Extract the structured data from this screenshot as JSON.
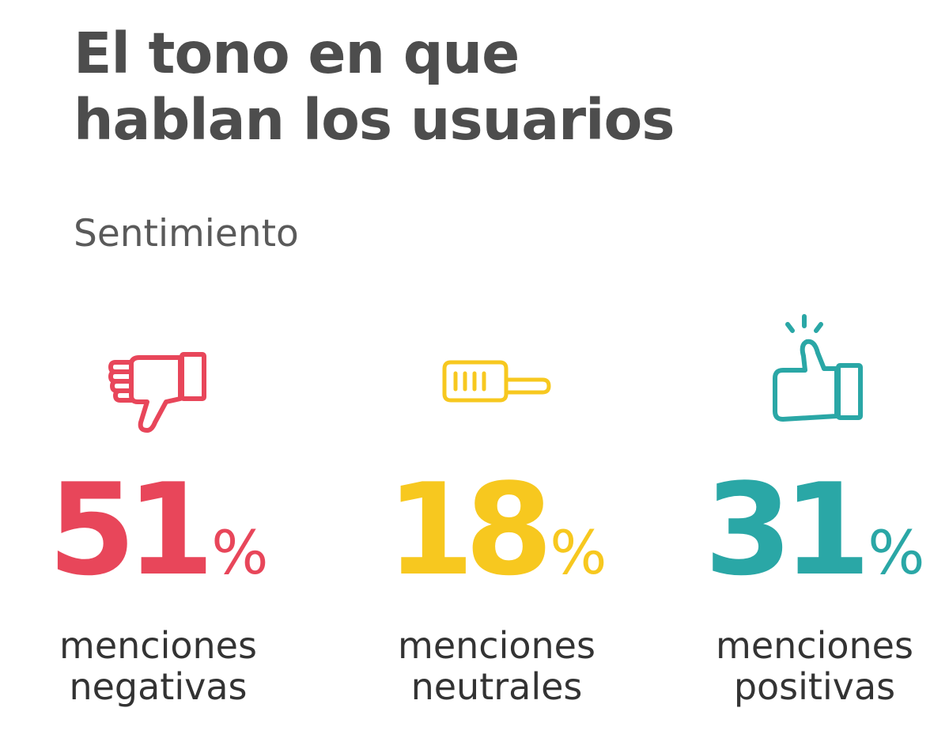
{
  "title_line1": "El tono en que",
  "title_line2": "hablan los usuarios",
  "subtitle": "Sentimiento",
  "chart_data": {
    "type": "pie",
    "categories": [
      "menciones negativas",
      "menciones neutrales",
      "menciones positivas"
    ],
    "values": [
      51,
      18,
      31
    ],
    "unit": "%",
    "colors": [
      "#e8465a",
      "#f7c81f",
      "#2aa7a6"
    ],
    "icons": [
      "thumbs-down-icon",
      "thumb-sideways-icon",
      "thumbs-up-icon"
    ]
  },
  "items": [
    {
      "value": "51",
      "percent": "%",
      "line1": "menciones",
      "line2": "negativas",
      "color": "#e8465a",
      "icon": "thumbs-down-icon"
    },
    {
      "value": "18",
      "percent": "%",
      "line1": "menciones",
      "line2": "neutrales",
      "color": "#f7c81f",
      "icon": "thumb-sideways-icon"
    },
    {
      "value": "31",
      "percent": "%",
      "line1": "menciones",
      "line2": "positivas",
      "color": "#2aa7a6",
      "icon": "thumbs-up-icon"
    }
  ]
}
